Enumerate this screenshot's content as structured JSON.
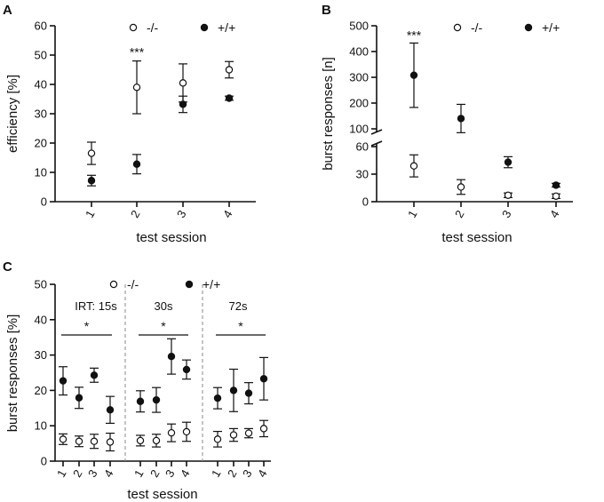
{
  "chart_data": [
    {
      "panel": "A",
      "type": "scatter",
      "ylabel": "efficiency [%]",
      "xlabel": "test session",
      "ylim": [
        0,
        60
      ],
      "yticks": [
        "0",
        "10",
        "20",
        "30",
        "40",
        "50",
        "60"
      ],
      "categories": [
        "1",
        "2",
        "3",
        "4"
      ],
      "legend": [
        {
          "label": "-/-",
          "marker": "open"
        },
        {
          "label": "+/+",
          "marker": "filled"
        }
      ],
      "series": [
        {
          "name": "-/-",
          "marker": "open",
          "values": [
            16.5,
            39,
            40.5,
            45
          ],
          "errors": [
            3.8,
            9,
            6.5,
            2.8
          ]
        },
        {
          "name": "+/+",
          "marker": "filled",
          "values": [
            7.2,
            12.8,
            33.2,
            35.3
          ],
          "errors": [
            1.8,
            3.3,
            2.8,
            0.7
          ]
        }
      ],
      "annotations": [
        {
          "text": "***",
          "category": "2"
        }
      ]
    },
    {
      "panel": "B",
      "type": "scatter",
      "ylabel": "burst responses [n]",
      "xlabel": "test session",
      "broken_axis": true,
      "upper_ylim": [
        100,
        500
      ],
      "upper_yticks": [
        "100",
        "200",
        "300",
        "400",
        "500"
      ],
      "lower_ylim": [
        0,
        60
      ],
      "lower_yticks": [
        "0",
        "30",
        "60"
      ],
      "categories": [
        "1",
        "2",
        "3",
        "4"
      ],
      "legend": [
        {
          "label": "-/-",
          "marker": "open"
        },
        {
          "label": "+/+",
          "marker": "filled"
        }
      ],
      "series": [
        {
          "name": "-/-",
          "marker": "open",
          "values": [
            39,
            16,
            7,
            6
          ],
          "errors": [
            12,
            8,
            2.5,
            2.5
          ]
        },
        {
          "name": "+/+",
          "marker": "filled",
          "values": [
            308,
            140,
            43,
            18
          ],
          "errors": [
            125,
            55,
            6,
            2
          ]
        }
      ],
      "annotations": [
        {
          "text": "***",
          "category": "1"
        }
      ]
    },
    {
      "panel": "C",
      "type": "scatter",
      "ylabel": "burst responses [%]",
      "xlabel": "test session",
      "ylim": [
        0,
        50
      ],
      "yticks": [
        "0",
        "10",
        "20",
        "30",
        "40",
        "50"
      ],
      "categories": [
        "1",
        "2",
        "3",
        "4"
      ],
      "legend": [
        {
          "label": "-/-",
          "marker": "open"
        },
        {
          "label": "+/+",
          "marker": "filled"
        }
      ],
      "groups": [
        {
          "label": "IRT: 15s",
          "significance": "*",
          "series": [
            {
              "name": "-/-",
              "marker": "open",
              "values": [
                6.2,
                5.6,
                5.6,
                5.4
              ],
              "errors": [
                1.5,
                1.5,
                2.0,
                2.5
              ]
            },
            {
              "name": "+/+",
              "marker": "filled",
              "values": [
                22.7,
                17.9,
                24.3,
                14.5
              ],
              "errors": [
                4.0,
                3.0,
                2.0,
                3.8
              ]
            }
          ]
        },
        {
          "label": "30s",
          "significance": "*",
          "series": [
            {
              "name": "-/-",
              "marker": "open",
              "values": [
                5.8,
                5.8,
                8.0,
                8.3
              ],
              "errors": [
                1.5,
                1.8,
                2.5,
                2.7
              ]
            },
            {
              "name": "+/+",
              "marker": "filled",
              "values": [
                16.9,
                17.3,
                29.6,
                25.9
              ],
              "errors": [
                3.0,
                3.5,
                5.0,
                2.7
              ]
            }
          ]
        },
        {
          "label": "72s",
          "significance": "*",
          "series": [
            {
              "name": "-/-",
              "marker": "open",
              "values": [
                6.2,
                7.4,
                7.9,
                9.2
              ],
              "errors": [
                2.2,
                1.8,
                1.3,
                2.3
              ]
            },
            {
              "name": "+/+",
              "marker": "filled",
              "values": [
                17.8,
                20.0,
                19.2,
                23.3
              ],
              "errors": [
                3.0,
                6.0,
                3.0,
                6.0
              ]
            }
          ]
        }
      ]
    }
  ]
}
